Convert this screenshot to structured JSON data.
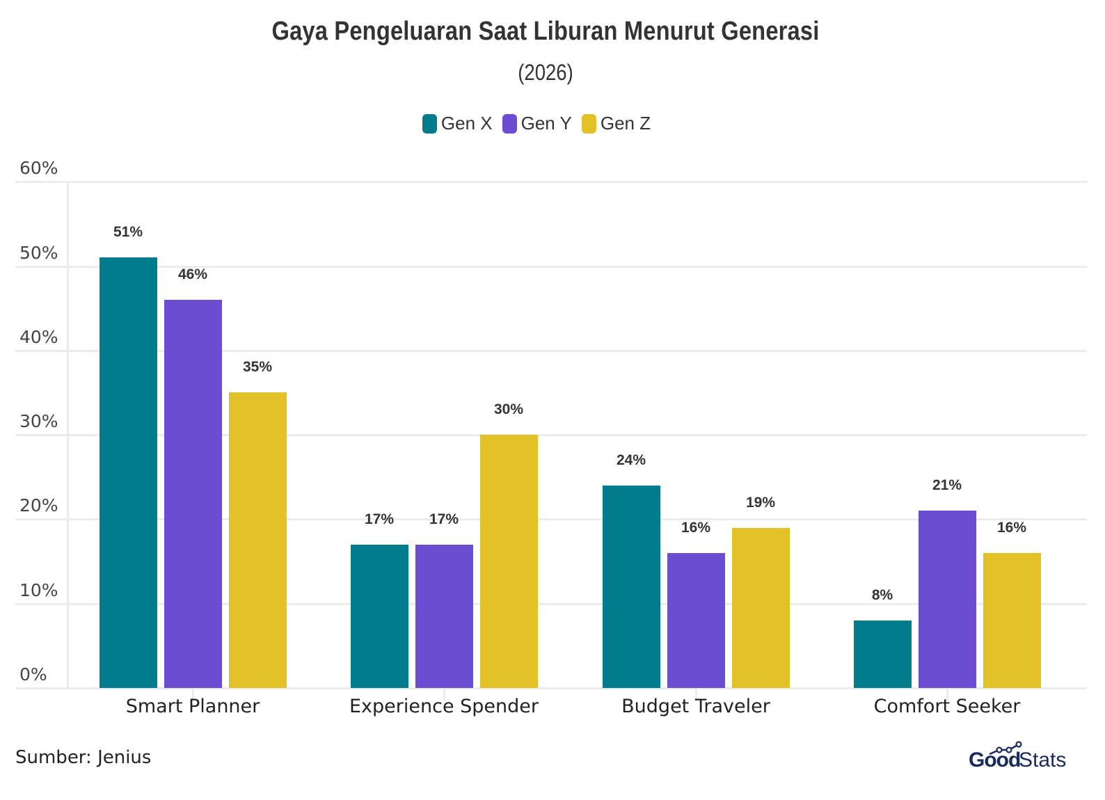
{
  "header": {
    "title": "Gaya Pengeluaran Saat Liburan Menurut Generasi",
    "subtitle": "(2026)"
  },
  "legend": [
    {
      "label": "Gen X",
      "color": "#007C8C"
    },
    {
      "label": "Gen Y",
      "color": "#6A4DD0"
    },
    {
      "label": "Gen Z",
      "color": "#E1C125"
    }
  ],
  "yaxis": {
    "ticks": [
      "0%",
      "10%",
      "20%",
      "30%",
      "40%",
      "50%",
      "60%"
    ]
  },
  "footer": {
    "source": "Sumber: Jenius",
    "logo_bold": "Good",
    "logo_light": "Stats"
  },
  "chart_data": {
    "type": "bar",
    "title": "Gaya Pengeluaran Saat Liburan Menurut Generasi",
    "subtitle": "(2026)",
    "categories": [
      "Smart Planner",
      "Experience Spender",
      "Budget Traveler",
      "Comfort Seeker"
    ],
    "series": [
      {
        "name": "Gen X",
        "color": "#007C8C",
        "values": [
          51,
          17,
          24,
          8
        ]
      },
      {
        "name": "Gen Y",
        "color": "#6A4DD0",
        "values": [
          46,
          17,
          16,
          21
        ]
      },
      {
        "name": "Gen Z",
        "color": "#E1C125",
        "values": [
          35,
          30,
          19,
          16
        ]
      }
    ],
    "data_labels": [
      [
        "51%",
        "17%",
        "24%",
        "8%"
      ],
      [
        "46%",
        "17%",
        "16%",
        "21%"
      ],
      [
        "35%",
        "30%",
        "19%",
        "16%"
      ]
    ],
    "xlabel": "",
    "ylabel": "",
    "ylim": [
      0,
      60
    ],
    "ytick_step": 10,
    "ytick_format": "percent",
    "grid": true,
    "legend_position": "top-center",
    "source": "Sumber: Jenius"
  }
}
